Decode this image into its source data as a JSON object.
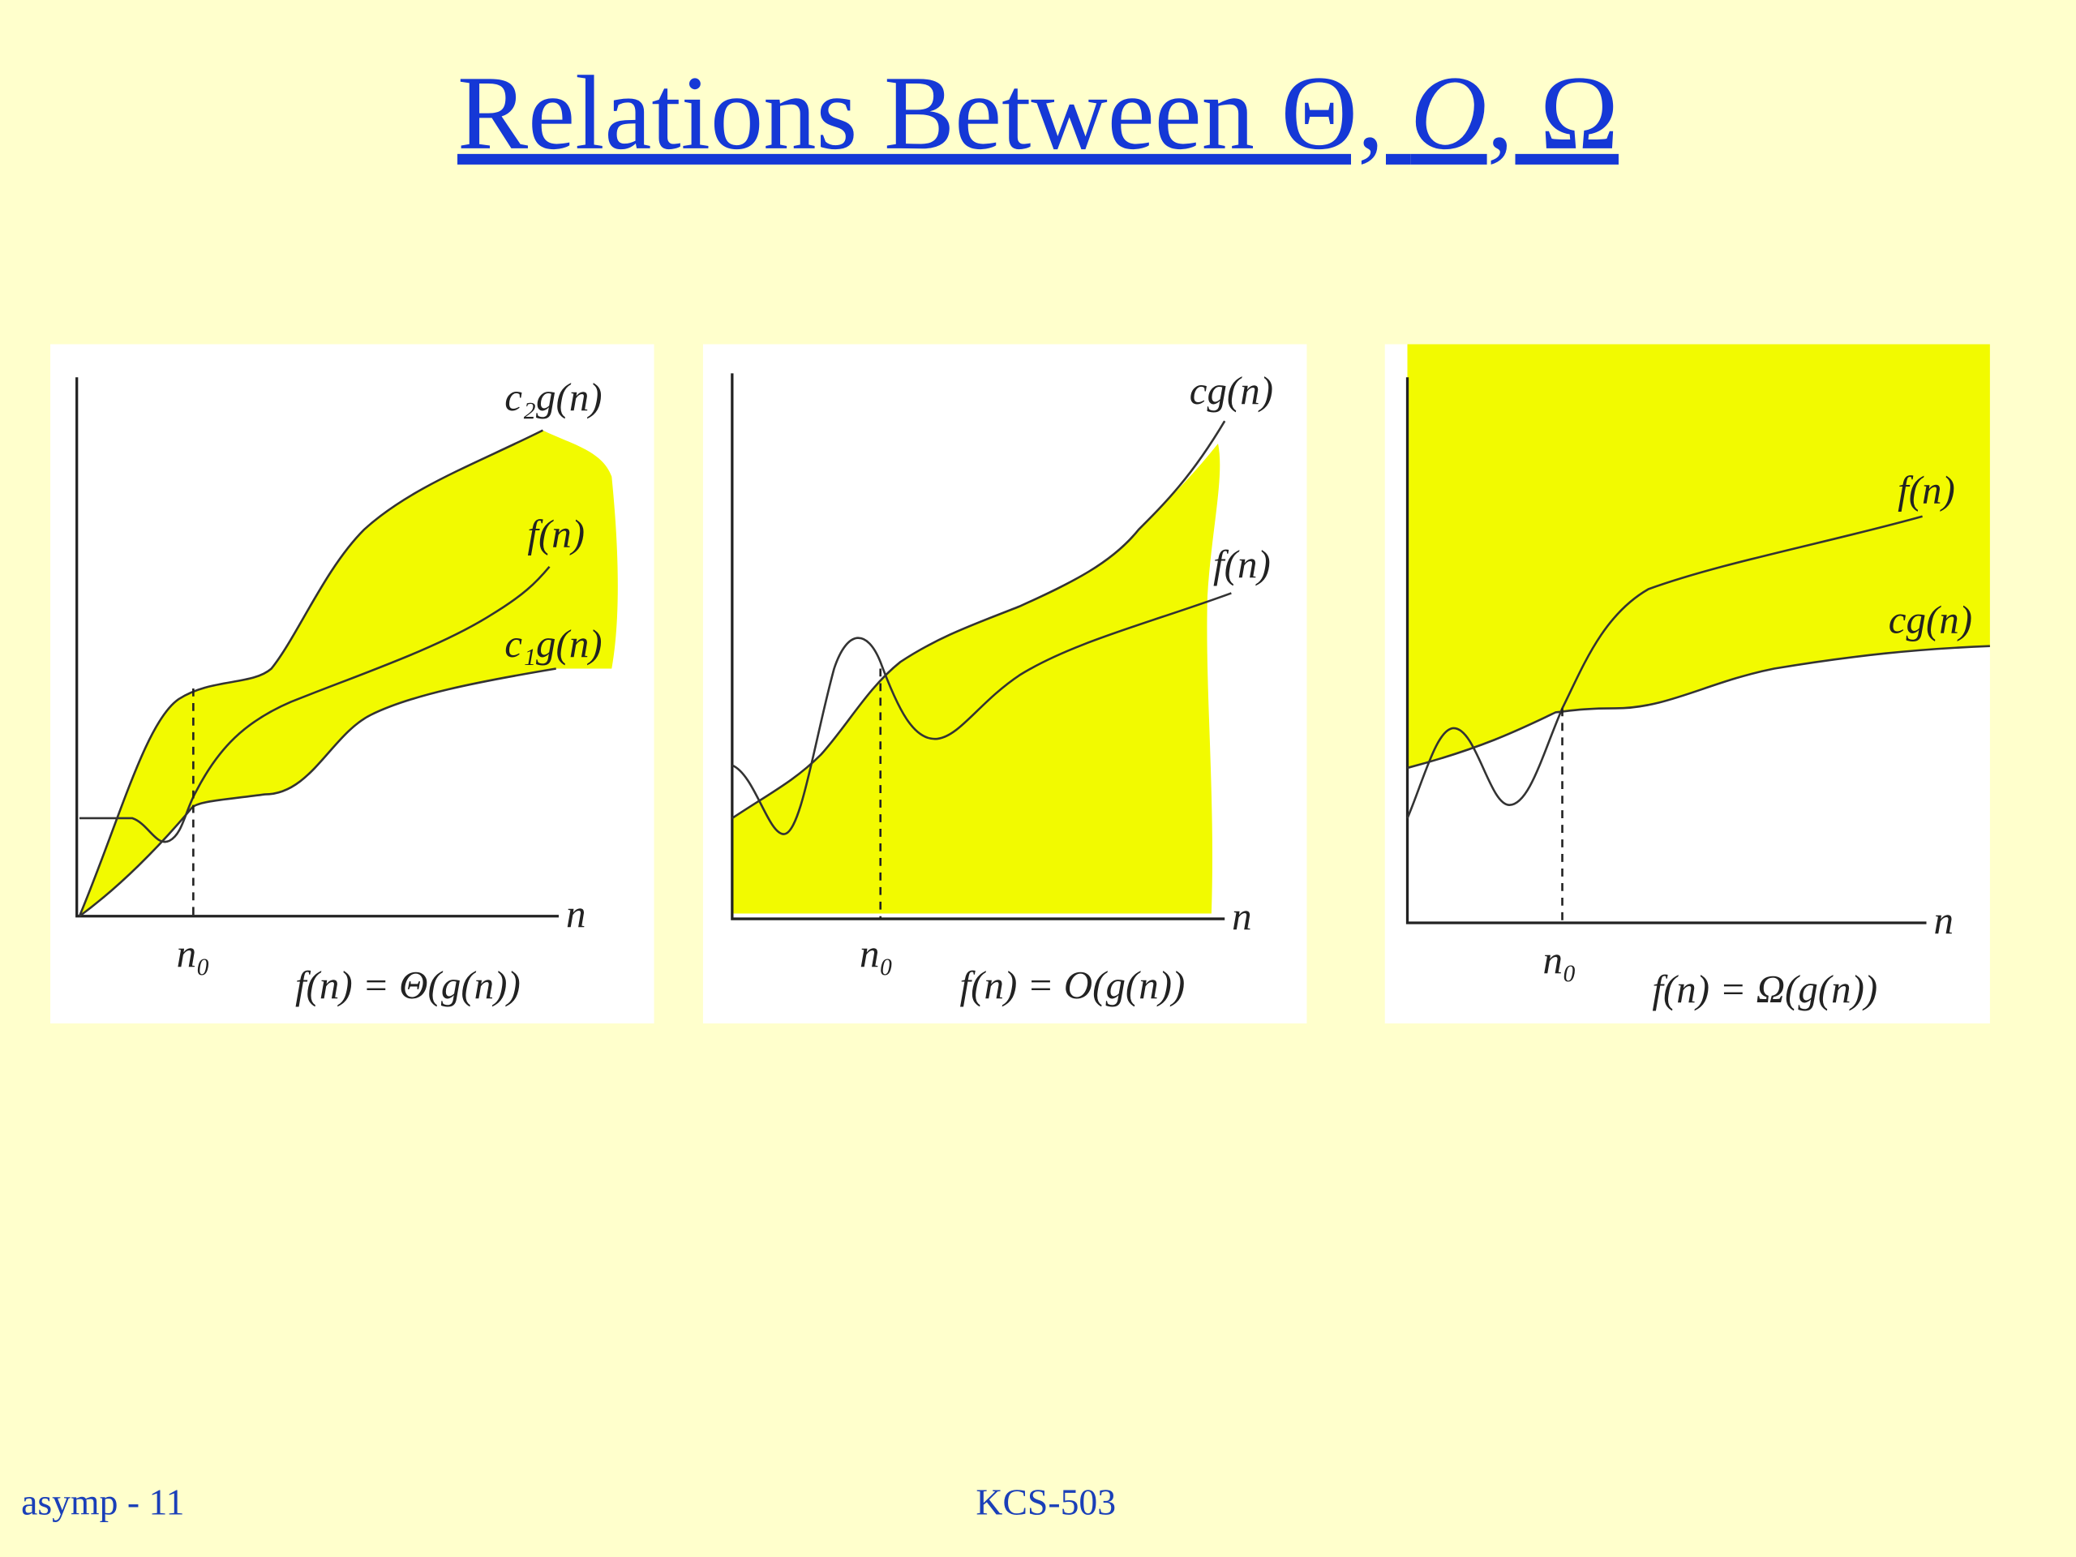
{
  "title": {
    "lead": "Relations Between Θ, ",
    "italic": "O",
    "tail": ", Ω"
  },
  "panels": [
    {
      "curves": [
        "c₂g(n)",
        "f(n)",
        "c₁g(n)"
      ],
      "x_axis": "n",
      "threshold": "n₀",
      "formula": "f(n) = Θ(g(n))"
    },
    {
      "curves": [
        "cg(n)",
        "f(n)"
      ],
      "x_axis": "n",
      "threshold": "n₀",
      "formula": "f(n) = O(g(n))"
    },
    {
      "curves": [
        "f(n)",
        "cg(n)"
      ],
      "x_axis": "n",
      "threshold": "n₀",
      "formula": "f(n) = Ω(g(n))"
    }
  ],
  "footer": {
    "left": "asymp - 11",
    "center": "KCS-503"
  }
}
